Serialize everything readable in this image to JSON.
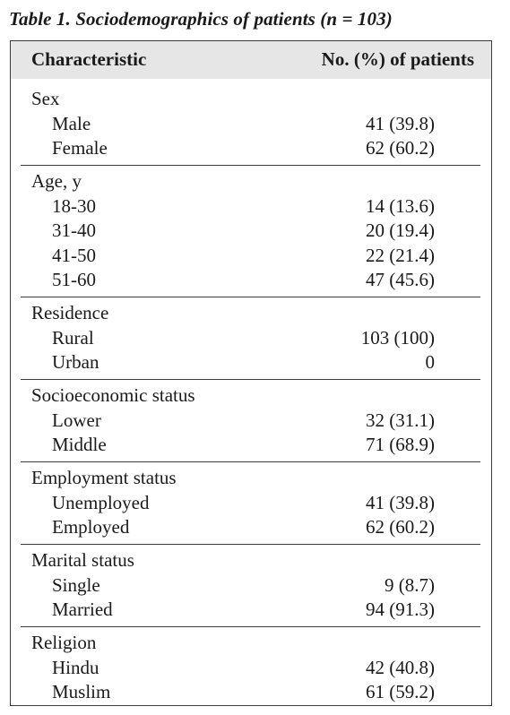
{
  "caption": "Table 1. Sociodemographics of patients (n = 103)",
  "table": {
    "columns": [
      "Characteristic",
      "No. (%) of patients"
    ],
    "groups": [
      {
        "label": "Sex",
        "rows": [
          {
            "label": "Male",
            "value": "41 (39.8)"
          },
          {
            "label": "Female",
            "value": "62 (60.2)"
          }
        ]
      },
      {
        "label": "Age, y",
        "rows": [
          {
            "label": "18-30",
            "value": "14 (13.6)"
          },
          {
            "label": "31-40",
            "value": "20 (19.4)"
          },
          {
            "label": "41-50",
            "value": "22 (21.4)"
          },
          {
            "label": "51-60",
            "value": "47 (45.6)"
          }
        ]
      },
      {
        "label": "Residence",
        "rows": [
          {
            "label": "Rural",
            "value": "103 (100)"
          },
          {
            "label": "Urban",
            "value": "0"
          }
        ]
      },
      {
        "label": "Socioeconomic status",
        "rows": [
          {
            "label": "Lower",
            "value": "32 (31.1)"
          },
          {
            "label": "Middle",
            "value": "71 (68.9)"
          }
        ]
      },
      {
        "label": "Employment status",
        "rows": [
          {
            "label": "Unemployed",
            "value": "41 (39.8)"
          },
          {
            "label": "Employed",
            "value": "62 (60.2)"
          }
        ]
      },
      {
        "label": "Marital status",
        "rows": [
          {
            "label": "Single",
            "value": "9 (8.7)"
          },
          {
            "label": "Married",
            "value": "94 (91.3)"
          }
        ]
      },
      {
        "label": "Religion",
        "rows": [
          {
            "label": "Hindu",
            "value": "42 (40.8)"
          },
          {
            "label": "Muslim",
            "value": "61 (59.2)"
          }
        ]
      }
    ]
  }
}
